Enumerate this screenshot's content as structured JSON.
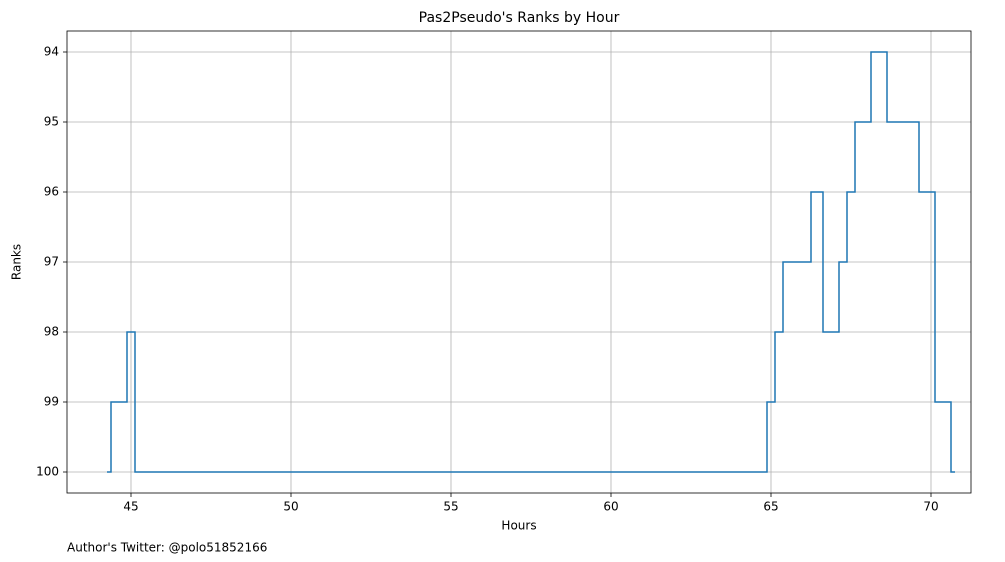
{
  "chart_data": {
    "type": "line",
    "step": "post",
    "title": "Pas2Pseudo's Ranks by Hour",
    "xlabel": "Hours",
    "ylabel": "Ranks",
    "footnote": "Author's Twitter: @polo51852166",
    "x": [
      44.25,
      44.375,
      44.875,
      45.125,
      64.875,
      65.125,
      65.375,
      66.25,
      66.625,
      67.125,
      67.375,
      67.625,
      68.125,
      68.625,
      69.625,
      70.125,
      70.625,
      70.75
    ],
    "series": [
      {
        "name": "Ranks",
        "color": "#1f77b4",
        "values": [
          100,
          99,
          98,
          100,
          99,
          98,
          97,
          96,
          98,
          97,
          96,
          95,
          94,
          95,
          96,
          99,
          100,
          100
        ]
      }
    ],
    "xlim": [
      43,
      71.25
    ],
    "xticks": [
      45,
      50,
      55,
      60,
      65,
      70
    ],
    "ylim": [
      100.3,
      93.7
    ],
    "yticks": [
      94,
      95,
      96,
      97,
      98,
      99,
      100
    ],
    "grid": true
  }
}
